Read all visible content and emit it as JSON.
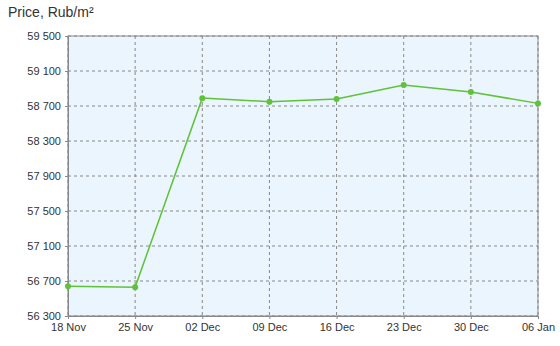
{
  "chart_data": {
    "type": "line",
    "title": "Price, Rub/m²",
    "categories": [
      "18 Nov",
      "25 Nov",
      "02 Dec",
      "09 Dec",
      "16 Dec",
      "23 Dec",
      "30 Dec",
      "06 Jan"
    ],
    "series": [
      {
        "name": "Price",
        "color": "#5fc23a",
        "marker": "circle",
        "values": [
          56640,
          56630,
          58790,
          58750,
          58780,
          58940,
          58860,
          58730
        ]
      }
    ],
    "ylim": [
      56300,
      59500
    ],
    "yticks": [
      {
        "value": 56300,
        "label": "56 300"
      },
      {
        "value": 56700,
        "label": "56 700"
      },
      {
        "value": 57100,
        "label": "57 100"
      },
      {
        "value": 57500,
        "label": "57 500"
      },
      {
        "value": 57900,
        "label": "57 900"
      },
      {
        "value": 58300,
        "label": "58 300"
      },
      {
        "value": 58700,
        "label": "58 700"
      },
      {
        "value": 59100,
        "label": "59 100"
      },
      {
        "value": 59500,
        "label": "59 500"
      }
    ],
    "grid": true
  }
}
